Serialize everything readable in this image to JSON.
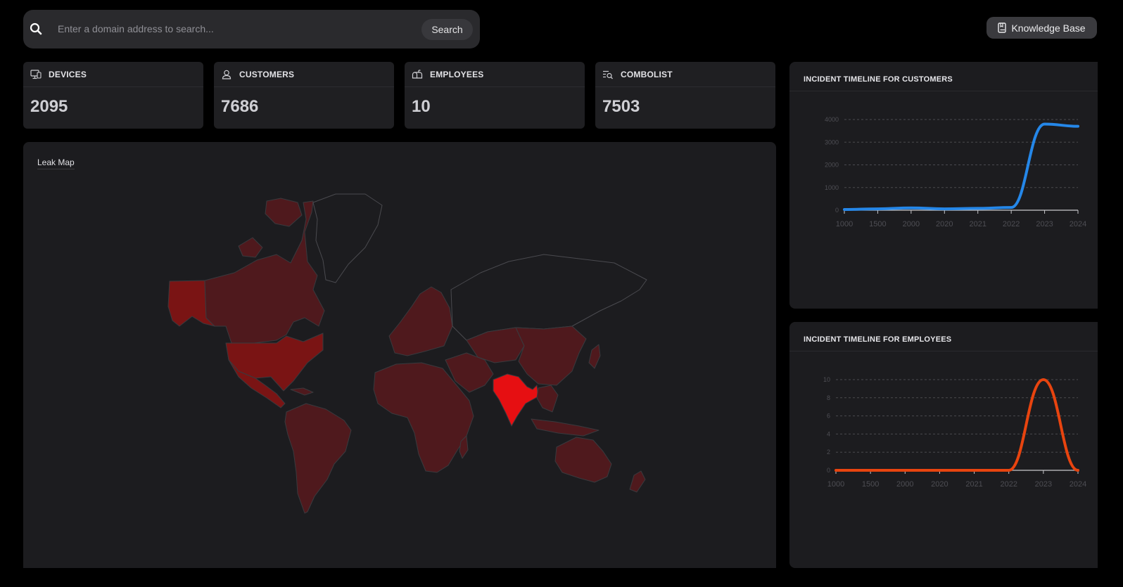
{
  "search": {
    "placeholder": "Enter a domain address to search...",
    "button_label": "Search"
  },
  "header": {
    "knowledge_base_label": "Knowledge Base"
  },
  "stats": [
    {
      "label": "DEVICES",
      "value": "2095",
      "icon": "monitor-icon"
    },
    {
      "label": "CUSTOMERS",
      "value": "7686",
      "icon": "user-icon"
    },
    {
      "label": "EMPLOYEES",
      "value": "10",
      "icon": "mailbox-icon"
    },
    {
      "label": "COMBOLIST",
      "value": "7503",
      "icon": "list-search-icon"
    }
  ],
  "map": {
    "title": "Leak Map",
    "colors": {
      "low": "#4f191d",
      "medium": "#7a1414",
      "high": "#e60f12",
      "outline": "#3a3a3e",
      "background": "#1c1c1f"
    }
  },
  "charts": {
    "customers": {
      "title": "INCIDENT TIMELINE FOR CUSTOMERS",
      "chart_data": {
        "type": "line",
        "title": "INCIDENT TIMELINE FOR CUSTOMERS",
        "categories": [
          "1000",
          "1500",
          "2000",
          "2020",
          "2021",
          "2022",
          "2023",
          "2024"
        ],
        "series": [
          {
            "values": [
              30,
              60,
              100,
              60,
              80,
              120,
              3800,
              3700
            ],
            "color": "#2587e8"
          }
        ],
        "yticks": [
          "0",
          "1000",
          "2000",
          "3000",
          "4000"
        ],
        "ylim": [
          0,
          4000
        ],
        "grid": true
      }
    },
    "employees": {
      "title": "INCIDENT TIMELINE FOR EMPLOYEES",
      "chart_data": {
        "type": "line",
        "title": "INCIDENT TIMELINE FOR EMPLOYEES",
        "categories": [
          "1000",
          "1500",
          "2000",
          "2020",
          "2021",
          "2022",
          "2023",
          "2024"
        ],
        "series": [
          {
            "values": [
              0,
              0,
              0,
              0,
              0,
              0,
              10,
              0
            ],
            "color": "#e8440f"
          }
        ],
        "yticks": [
          "0",
          "2",
          "4",
          "6",
          "8",
          "10"
        ],
        "ylim": [
          0,
          10
        ],
        "grid": true
      }
    }
  }
}
